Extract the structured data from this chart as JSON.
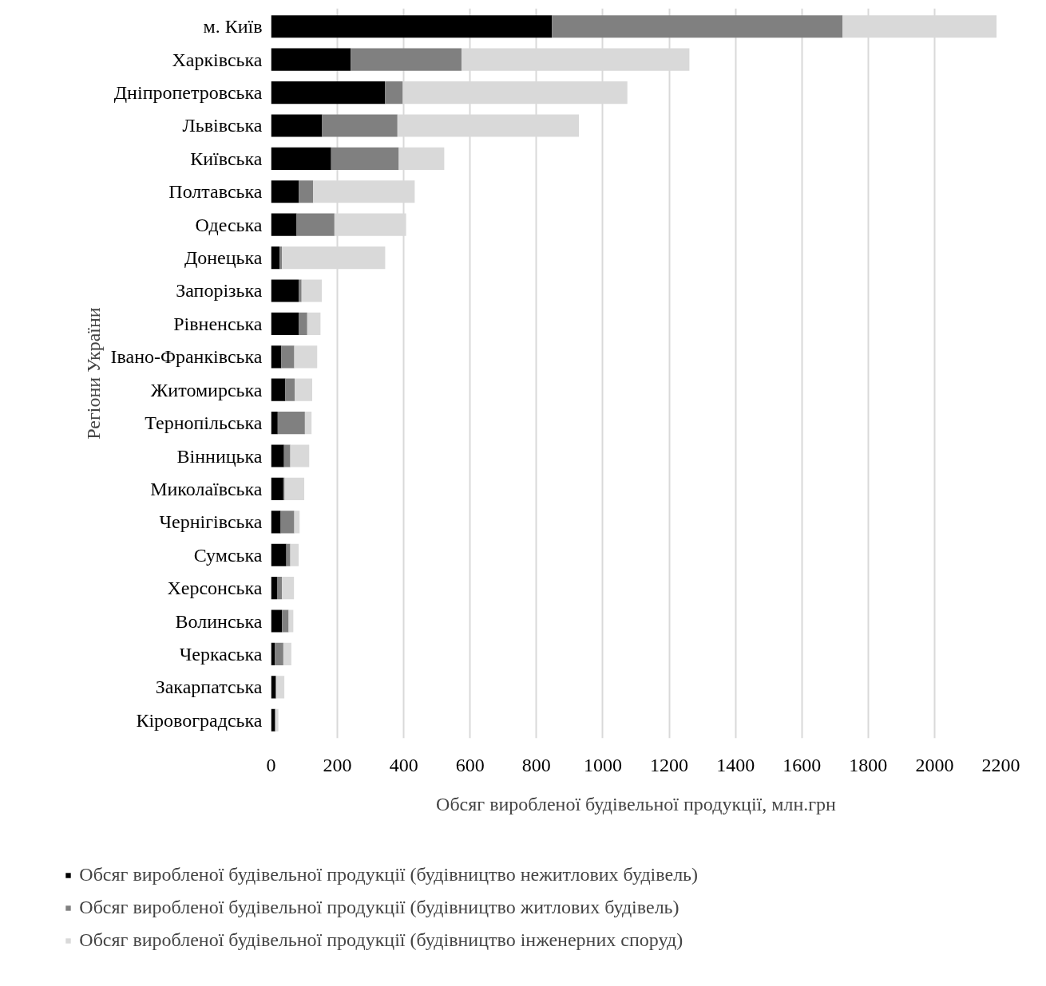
{
  "chart_data": {
    "type": "bar",
    "orientation": "horizontal",
    "stacked": true,
    "xlabel": "Обсяг виробленої будівельної продукції, млн.грн",
    "ylabel": "Регіони України",
    "categories": [
      "м. Київ",
      "Харківська",
      "Дніпропетровська",
      "Львівська",
      "Київська",
      "Полтавська",
      "Одеська",
      "Донецька",
      "Запорізька",
      "Рівненська",
      "Івано-Франківська",
      "Житомирська",
      "Тернопільська",
      "Вінницька",
      "Миколаївська",
      "Чернігівська",
      "Сумська",
      "Херсонська",
      "Волинська",
      "Черкаська",
      "Закарпатська",
      "Кіровоградська"
    ],
    "series": [
      {
        "name": "Обсяг виробленої будівельної продукції (будівництво нежитлових будівель)",
        "color": "#000000",
        "values": [
          847,
          240,
          344,
          154,
          181,
          84,
          77,
          26,
          83,
          83,
          31,
          43,
          20,
          39,
          37,
          29,
          46,
          18,
          33,
          11,
          14,
          12
        ]
      },
      {
        "name": "Обсяг виробленої будівельної продукції (будівництво житлових будівель)",
        "color": "#808080",
        "values": [
          876,
          334,
          53,
          227,
          204,
          43,
          114,
          7,
          9,
          26,
          39,
          28,
          82,
          19,
          4,
          41,
          12,
          15,
          20,
          26,
          2,
          2
        ]
      },
      {
        "name": "Обсяг виробленої будівельної продукції (будівництво інженерних споруд)",
        "color": "#d9d9d9",
        "values": [
          464,
          687,
          677,
          547,
          137,
          306,
          216,
          311,
          61,
          40,
          69,
          53,
          20,
          57,
          59,
          16,
          25,
          36,
          14,
          24,
          24,
          8
        ]
      }
    ],
    "xlim": [
      0,
      2200
    ],
    "xticks": [
      0,
      200,
      400,
      600,
      800,
      1000,
      1200,
      1400,
      1600,
      1800,
      2000,
      2200
    ],
    "grid": "x",
    "legend": "bottom"
  }
}
